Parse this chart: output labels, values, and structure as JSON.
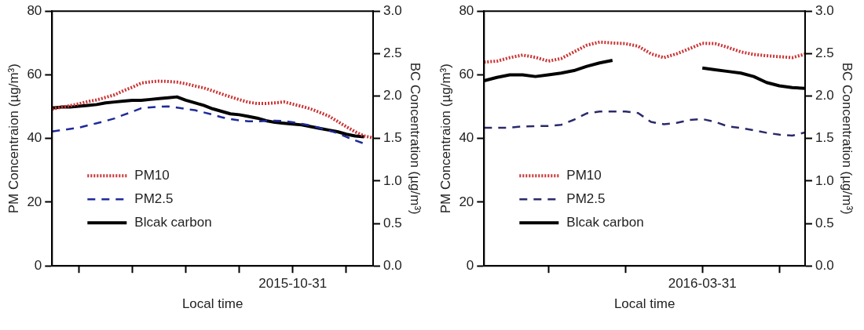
{
  "chart_data": [
    {
      "type": "line",
      "xlabel": "Local time",
      "ylabel": "PM Concentraion (µg/m³)",
      "y2label": "BC Concentration (µg/m³)",
      "categories": [
        null,
        null,
        null,
        null,
        null,
        null,
        null,
        null,
        null,
        null,
        null,
        null,
        null,
        null,
        null,
        null,
        null,
        null,
        null,
        null,
        null,
        null,
        null,
        null,
        null,
        null,
        null,
        "2015-10-31",
        null,
        null,
        null,
        null,
        null,
        null,
        null,
        null,
        null
      ],
      "ylim": [
        0,
        80
      ],
      "yticks": [
        0,
        20,
        40,
        60,
        80
      ],
      "y2lim": [
        0,
        3
      ],
      "y2ticks": [
        {
          "value": 0,
          "label": "0.0"
        },
        {
          "value": 0.5,
          "label": "0.5"
        },
        {
          "value": 1,
          "label": "1.0"
        },
        {
          "value": 1.5,
          "label": "1.5"
        },
        {
          "value": 2,
          "label": "2.0"
        },
        {
          "value": 2.5,
          "label": "2.5"
        },
        {
          "value": 3,
          "label": "3.0"
        }
      ],
      "grid": false,
      "legend": "bottom left",
      "marker": "none",
      "series": [
        {
          "name": "PM10",
          "color": "#cc3333",
          "line_style": "dotted",
          "values": [
            49.2,
            49.8,
            50.3,
            50.9,
            51.6,
            52.1,
            52.9,
            53.7,
            55.0,
            56.1,
            57.4,
            57.8,
            58.0,
            57.9,
            57.7,
            57.2,
            56.5,
            55.9,
            55.0,
            54.0,
            53.1,
            52.2,
            51.4,
            51.0,
            51.0,
            51.2,
            51.5,
            50.8,
            50.1,
            49.3,
            48.2,
            47.1,
            45.4,
            43.7,
            42.1,
            40.8,
            40.2
          ]
        },
        {
          "name": "PM2.5",
          "color": "#1f2a9a",
          "line_style": "dashed",
          "values": [
            42.2,
            42.6,
            43.0,
            43.4,
            44.1,
            44.8,
            45.5,
            46.3,
            47.4,
            48.4,
            49.5,
            49.8,
            50.0,
            50.1,
            49.7,
            49.3,
            48.9,
            48.2,
            47.5,
            46.7,
            46.1,
            45.7,
            45.4,
            45.4,
            45.5,
            45.6,
            45.5,
            45.1,
            44.6,
            44.1,
            43.3,
            42.5,
            41.7,
            40.5,
            39.4,
            38.4,
            null
          ]
        },
        {
          "name": "Blcak carbon",
          "color": "#000000",
          "line_style": "solid",
          "axis": "y2",
          "values": [
            1.86,
            1.87,
            1.87,
            1.88,
            1.89,
            1.9,
            1.92,
            1.93,
            1.94,
            1.95,
            1.95,
            1.96,
            1.97,
            1.98,
            1.99,
            1.95,
            1.92,
            1.89,
            1.85,
            1.82,
            1.79,
            1.78,
            1.76,
            1.74,
            1.71,
            1.69,
            1.68,
            1.67,
            1.66,
            1.64,
            1.62,
            1.6,
            1.58,
            1.55,
            1.53,
            1.52,
            null
          ]
        }
      ]
    },
    {
      "type": "line",
      "xlabel": "Local time",
      "ylabel": "PM Concentraion (µg/m³)",
      "y2label": "BC Concentration (µg/m³)",
      "categories": [
        null,
        null,
        null,
        null,
        null,
        null,
        null,
        null,
        null,
        null,
        null,
        null,
        null,
        null,
        null,
        null,
        null,
        "2016-03-31",
        null,
        null,
        null,
        null,
        null,
        null,
        null,
        null
      ],
      "ylim": [
        0,
        80
      ],
      "yticks": [
        0,
        20,
        40,
        60,
        80
      ],
      "y2lim": [
        0,
        3
      ],
      "y2ticks": [
        {
          "value": 0,
          "label": "0.0"
        },
        {
          "value": 0.5,
          "label": "0.5"
        },
        {
          "value": 1,
          "label": "1.0"
        },
        {
          "value": 1.5,
          "label": "1.5"
        },
        {
          "value": 2,
          "label": "2.0"
        },
        {
          "value": 2.5,
          "label": "2.5"
        },
        {
          "value": 3,
          "label": "3.0"
        }
      ],
      "grid": false,
      "legend": "bottom left",
      "marker": "none",
      "series": [
        {
          "name": "PM10",
          "color": "#cc3333",
          "line_style": "dotted",
          "values": [
            64.0,
            64.3,
            65.4,
            66.2,
            65.5,
            64.3,
            65.1,
            67.2,
            69.3,
            70.3,
            70.0,
            69.8,
            69.0,
            66.6,
            65.4,
            66.6,
            68.2,
            69.9,
            69.8,
            68.6,
            67.2,
            66.4,
            66.0,
            65.7,
            65.4,
            66.5
          ]
        },
        {
          "name": "PM2.5",
          "color": "#2a2a6a",
          "line_style": "dashed",
          "values": [
            43.4,
            43.4,
            43.4,
            43.8,
            43.9,
            43.9,
            44.3,
            45.9,
            47.9,
            48.5,
            48.5,
            48.5,
            48.0,
            45.2,
            44.5,
            44.9,
            45.8,
            46.1,
            45.2,
            43.8,
            43.3,
            42.6,
            41.8,
            41.2,
            40.9,
            41.9
          ]
        },
        {
          "name": "Blcak carbon",
          "color": "#000000",
          "line_style": "solid",
          "axis": "y2",
          "values": [
            2.18,
            2.22,
            2.25,
            2.25,
            2.23,
            2.25,
            2.27,
            2.3,
            2.35,
            2.39,
            2.42,
            null,
            null,
            null,
            null,
            null,
            null,
            2.33,
            2.31,
            2.29,
            2.27,
            2.23,
            2.16,
            2.12,
            2.1,
            2.09
          ]
        }
      ]
    }
  ]
}
